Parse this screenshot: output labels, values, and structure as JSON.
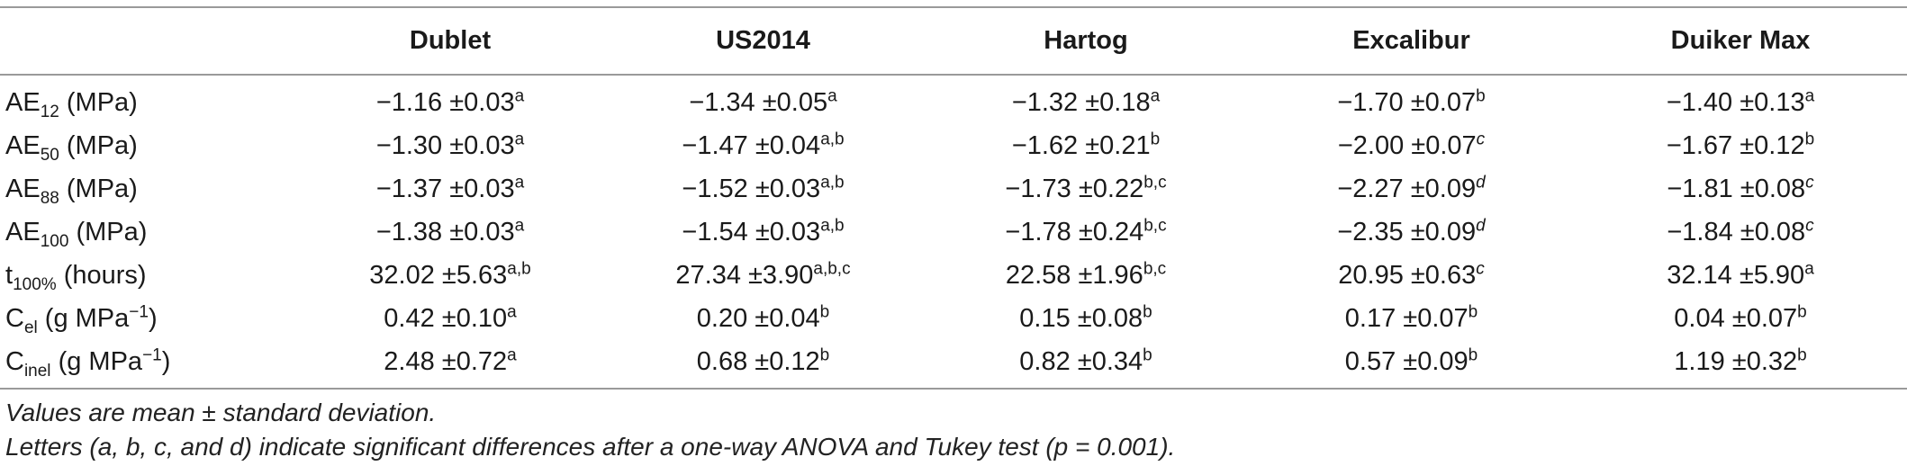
{
  "table": {
    "columns": [
      "",
      "Dublet",
      "US2014",
      "Hartog",
      "Excalibur",
      "Duiker Max"
    ],
    "rows": [
      {
        "label": {
          "main": "AE",
          "sub": "12",
          "unit": " (MPa)"
        },
        "cells": [
          {
            "value": "−1.16 ±0.03",
            "sup": "a"
          },
          {
            "value": "−1.34 ±0.05",
            "sup": "a"
          },
          {
            "value": "−1.32 ±0.18",
            "sup": "a"
          },
          {
            "value": "−1.70 ±0.07",
            "sup": "b"
          },
          {
            "value": "−1.40 ±0.13",
            "sup": "a"
          }
        ]
      },
      {
        "label": {
          "main": "AE",
          "sub": "50",
          "unit": " (MPa)"
        },
        "cells": [
          {
            "value": "−1.30 ±0.03",
            "sup": "a"
          },
          {
            "value": "−1.47 ±0.04",
            "sup": "a,b"
          },
          {
            "value": "−1.62 ±0.21",
            "sup": "b"
          },
          {
            "value": "−2.00 ±0.07",
            "sup": "c"
          },
          {
            "value": "−1.67 ±0.12",
            "sup": "b"
          }
        ]
      },
      {
        "label": {
          "main": "AE",
          "sub": "88",
          "unit": " (MPa)"
        },
        "cells": [
          {
            "value": "−1.37 ±0.03",
            "sup": "a"
          },
          {
            "value": "−1.52 ±0.03",
            "sup": "a,b"
          },
          {
            "value": "−1.73 ±0.22",
            "sup": "b,c"
          },
          {
            "value": "−2.27 ±0.09",
            "sup": "d"
          },
          {
            "value": "−1.81 ±0.08",
            "sup": "c"
          }
        ]
      },
      {
        "label": {
          "main": "AE",
          "sub": "100",
          "unit": " (MPa)"
        },
        "cells": [
          {
            "value": "−1.38 ±0.03",
            "sup": "a"
          },
          {
            "value": "−1.54 ±0.03",
            "sup": "a,b"
          },
          {
            "value": "−1.78 ±0.24",
            "sup": "b,c"
          },
          {
            "value": "−2.35 ±0.09",
            "sup": "d"
          },
          {
            "value": "−1.84 ±0.08",
            "sup": "c"
          }
        ]
      },
      {
        "label": {
          "main": "t",
          "sub": "100%",
          "unit": " (hours)"
        },
        "cells": [
          {
            "value": "32.02 ±5.63",
            "sup": "a,b"
          },
          {
            "value": "27.34 ±3.90",
            "sup": "a,b,c"
          },
          {
            "value": "22.58 ±1.96",
            "sup": "b,c"
          },
          {
            "value": "20.95 ±0.63",
            "sup": "c"
          },
          {
            "value": "32.14 ±5.90",
            "sup": "a"
          }
        ]
      },
      {
        "label": {
          "main": "C",
          "sub": "el",
          "unit": " (g MPa",
          "unit_sup": "−1",
          "unit_end": ")"
        },
        "cells": [
          {
            "value": "0.42 ±0.10",
            "sup": "a"
          },
          {
            "value": "0.20 ±0.04",
            "sup": "b"
          },
          {
            "value": "0.15 ±0.08",
            "sup": "b"
          },
          {
            "value": "0.17 ±0.07",
            "sup": "b"
          },
          {
            "value": "0.04 ±0.07",
            "sup": "b"
          }
        ]
      },
      {
        "label": {
          "main": "C",
          "sub": "inel",
          "unit": " (g MPa",
          "unit_sup": "−1",
          "unit_end": ")"
        },
        "cells": [
          {
            "value": "2.48 ±0.72",
            "sup": "a"
          },
          {
            "value": "0.68 ±0.12",
            "sup": "b"
          },
          {
            "value": "0.82 ±0.34",
            "sup": "b"
          },
          {
            "value": "0.57 ±0.09",
            "sup": "b"
          },
          {
            "value": "1.19 ±0.32",
            "sup": "b"
          }
        ]
      }
    ]
  },
  "notes": {
    "line1": "Values are mean ± standard deviation.",
    "line2": "Letters (a, b, c, and d) indicate significant differences after a one-way ANOVA and Tukey test (p = 0.001)."
  }
}
